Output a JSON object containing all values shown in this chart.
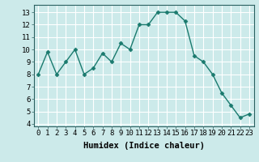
{
  "x": [
    0,
    1,
    2,
    3,
    4,
    5,
    6,
    7,
    8,
    9,
    10,
    11,
    12,
    13,
    14,
    15,
    16,
    17,
    18,
    19,
    20,
    21,
    22,
    23
  ],
  "y": [
    8.0,
    9.8,
    8.0,
    9.0,
    10.0,
    8.0,
    8.5,
    9.7,
    9.0,
    10.5,
    10.0,
    12.0,
    12.0,
    13.0,
    13.0,
    13.0,
    12.3,
    9.5,
    9.0,
    8.0,
    6.5,
    5.5,
    4.5,
    4.8
  ],
  "line_color": "#1a7a6e",
  "marker": "D",
  "marker_size": 2.5,
  "bg_color": "#cceaea",
  "grid_color": "#ffffff",
  "xlabel": "Humidex (Indice chaleur)",
  "xlabel_fontsize": 7.5,
  "ylim": [
    3.8,
    13.6
  ],
  "xlim": [
    -0.5,
    23.5
  ],
  "yticks": [
    4,
    5,
    6,
    7,
    8,
    9,
    10,
    11,
    12,
    13
  ],
  "xticks": [
    0,
    1,
    2,
    3,
    4,
    5,
    6,
    7,
    8,
    9,
    10,
    11,
    12,
    13,
    14,
    15,
    16,
    17,
    18,
    19,
    20,
    21,
    22,
    23
  ],
  "tick_fontsize": 6.5,
  "line_width": 1.0
}
